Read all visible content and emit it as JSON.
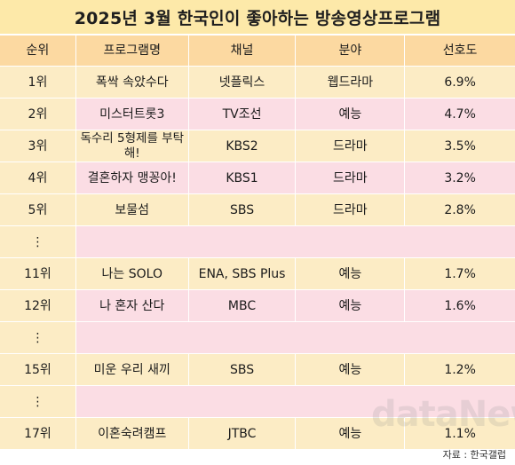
{
  "title": "2025년 3월 한국인이 좋아하는 방송영상프로그램",
  "headers": [
    "순위",
    "프로그램명",
    "채널",
    "분야",
    "선호도"
  ],
  "rows": [
    {
      "rank": "1위",
      "program": "폭싹 속았수다",
      "channel": "넷플릭스",
      "genre": "웹드라마",
      "pref": "6.9%"
    },
    {
      "rank": "2위",
      "program": "미스터트롯3",
      "channel": "TV조선",
      "genre": "예능",
      "pref": "4.7%"
    },
    {
      "rank": "3위",
      "program": "독수리 5형제를 부탁해!",
      "channel": "KBS2",
      "genre": "드라마",
      "pref": "3.5%"
    },
    {
      "rank": "4위",
      "program": "결혼하자 맹꽁아!",
      "channel": "KBS1",
      "genre": "드라마",
      "pref": "3.2%"
    },
    {
      "rank": "5위",
      "program": "보물섬",
      "channel": "SBS",
      "genre": "드라마",
      "pref": "2.8%"
    },
    {
      "rank": "⋮",
      "gap": true
    },
    {
      "rank": "11위",
      "program": "나는 SOLO",
      "channel": "ENA, SBS Plus",
      "genre": "예능",
      "pref": "1.7%"
    },
    {
      "rank": "12위",
      "program": "나 혼자 산다",
      "channel": "MBC",
      "genre": "예능",
      "pref": "1.6%"
    },
    {
      "rank": "⋮",
      "gap": true
    },
    {
      "rank": "15위",
      "program": "미운 우리 새끼",
      "channel": "SBS",
      "genre": "예능",
      "pref": "1.2%"
    },
    {
      "rank": "⋮",
      "gap": true
    },
    {
      "rank": "17위",
      "program": "이혼숙려캠프",
      "channel": "JTBC",
      "genre": "예능",
      "pref": "1.1%"
    }
  ],
  "source": "자료 : 한국갤럽",
  "watermark": "dataNews"
}
